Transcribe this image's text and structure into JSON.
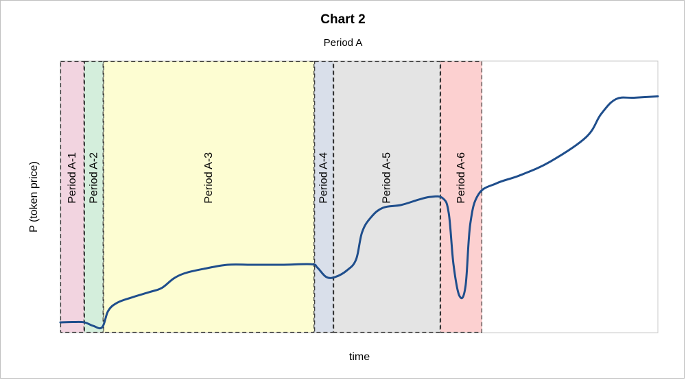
{
  "chart_data": {
    "type": "line",
    "title": "Chart 2",
    "subtitle": "Period A",
    "xlabel": "time",
    "ylabel": "P (token price)",
    "xlim": [
      0,
      100
    ],
    "ylim": [
      0,
      100
    ],
    "grid": false,
    "regions": [
      {
        "label": "Period A-1",
        "x_start": 0.0,
        "x_end": 4.0,
        "color": "#f2d4e0"
      },
      {
        "label": "Period A-2",
        "x_start": 4.0,
        "x_end": 7.2,
        "color": "#d4eedc"
      },
      {
        "label": "Period A-3",
        "x_start": 7.2,
        "x_end": 42.5,
        "color": "#fdfdd2"
      },
      {
        "label": "Period A-4",
        "x_start": 42.5,
        "x_end": 45.7,
        "color": "#d9dfea"
      },
      {
        "label": "Period A-5",
        "x_start": 45.7,
        "x_end": 63.6,
        "color": "#e4e4e4"
      },
      {
        "label": "Period A-6",
        "x_start": 63.6,
        "x_end": 70.6,
        "color": "#fcd0d0"
      }
    ],
    "series": [
      {
        "color": "#1f4e8c",
        "points": [
          [
            0.0,
            3.8
          ],
          [
            2.0,
            3.9
          ],
          [
            4.0,
            3.8
          ],
          [
            5.5,
            2.5
          ],
          [
            7.0,
            2.0
          ],
          [
            8.0,
            8.0
          ],
          [
            9.5,
            11.0
          ],
          [
            12.0,
            13.0
          ],
          [
            15.0,
            15.0
          ],
          [
            17.0,
            16.5
          ],
          [
            19.0,
            20.0
          ],
          [
            21.0,
            22.0
          ],
          [
            24.0,
            23.5
          ],
          [
            28.0,
            25.0
          ],
          [
            32.0,
            25.0
          ],
          [
            37.0,
            25.0
          ],
          [
            42.0,
            25.2
          ],
          [
            43.0,
            24.0
          ],
          [
            44.5,
            20.5
          ],
          [
            46.0,
            20.5
          ],
          [
            48.0,
            23.0
          ],
          [
            49.5,
            27.0
          ],
          [
            50.5,
            37.0
          ],
          [
            52.0,
            42.5
          ],
          [
            54.0,
            46.0
          ],
          [
            57.0,
            47.0
          ],
          [
            60.0,
            49.0
          ],
          [
            62.0,
            50.0
          ],
          [
            64.0,
            49.5
          ],
          [
            65.0,
            44.0
          ],
          [
            65.8,
            25.0
          ],
          [
            66.8,
            13.5
          ],
          [
            67.8,
            17.0
          ],
          [
            68.6,
            40.0
          ],
          [
            70.0,
            51.0
          ],
          [
            73.0,
            55.0
          ],
          [
            77.0,
            58.0
          ],
          [
            82.0,
            63.0
          ],
          [
            88.0,
            72.0
          ],
          [
            90.5,
            80.5
          ],
          [
            93.0,
            86.0
          ],
          [
            96.0,
            86.5
          ],
          [
            100.0,
            87.0
          ]
        ]
      }
    ]
  }
}
